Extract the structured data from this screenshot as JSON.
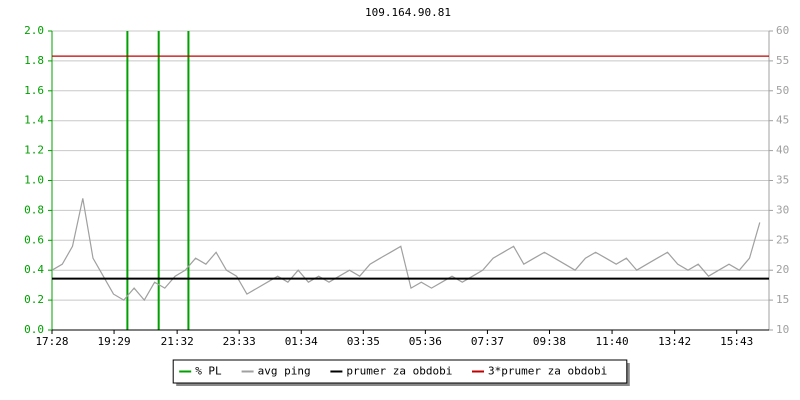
{
  "chart_data": {
    "type": "line",
    "title": "109.164.90.81",
    "xlim": [
      "17:28",
      "16:46"
    ],
    "xticks": [
      "17:28",
      "19:29",
      "21:32",
      "23:33",
      "01:34",
      "03:35",
      "05:36",
      "07:37",
      "09:38",
      "11:40",
      "13:42",
      "15:43"
    ],
    "ylim": [
      0,
      2
    ],
    "yticks": [
      {
        "value": 0,
        "label": "0.0"
      },
      0.2,
      0.4,
      0.6,
      0.8,
      {
        "value": 1,
        "label": "1.0"
      },
      1.2,
      1.4,
      1.6,
      1.8,
      {
        "value": 2,
        "label": "2.0"
      }
    ],
    "y2lim": [
      10,
      60
    ],
    "y2ticks": [
      10,
      15,
      20,
      25,
      30,
      35,
      40,
      45,
      50,
      55,
      60
    ],
    "grid": true,
    "legend": "bottom",
    "series": [
      {
        "name": "% PL",
        "color": "#00a000",
        "mark": "bar",
        "x": [
          "19:55",
          "20:56",
          "21:54"
        ],
        "values": [
          2,
          2,
          2
        ]
      },
      {
        "name": "avg ping",
        "color": "#a0a0a0",
        "mark": "line",
        "axis": "y2",
        "x": [
          "17:28",
          "17:48",
          "18:08",
          "18:28",
          "18:48",
          "19:08",
          "19:28",
          "19:48",
          "20:08",
          "20:28",
          "20:48",
          "21:08",
          "21:28",
          "21:48",
          "22:08",
          "22:28",
          "22:48",
          "23:08",
          "23:28",
          "23:48",
          "00:08",
          "00:28",
          "00:48",
          "01:08",
          "01:28",
          "01:48",
          "02:08",
          "02:28",
          "02:48",
          "03:08",
          "03:28",
          "03:48",
          "04:08",
          "04:28",
          "04:48",
          "05:08",
          "05:28",
          "05:48",
          "06:08",
          "06:28",
          "06:48",
          "07:08",
          "07:28",
          "07:48",
          "08:08",
          "08:28",
          "08:48",
          "09:08",
          "09:28",
          "09:48",
          "10:08",
          "10:28",
          "10:48",
          "11:08",
          "11:28",
          "11:48",
          "12:08",
          "12:28",
          "12:48",
          "13:08",
          "13:28",
          "13:48",
          "14:08",
          "14:28",
          "14:48",
          "15:08",
          "15:28",
          "15:48",
          "16:08",
          "16:28"
        ],
        "values": [
          20,
          21,
          24,
          32,
          22,
          19,
          16,
          15,
          17,
          15,
          18,
          17,
          19,
          20,
          22,
          21,
          23,
          20,
          19,
          16,
          17,
          18,
          19,
          18,
          20,
          18,
          19,
          18,
          19,
          20,
          19,
          21,
          22,
          23,
          24,
          17,
          18,
          17,
          18,
          19,
          18,
          19,
          20,
          22,
          23,
          24,
          21,
          22,
          23,
          22,
          21,
          20,
          22,
          23,
          22,
          21,
          22,
          20,
          21,
          22,
          23,
          21,
          20,
          21,
          19,
          20,
          21,
          20,
          22,
          28
        ]
      },
      {
        "name": "prumer za obdobi",
        "color": "#000000",
        "mark": "hline",
        "axis": "y2",
        "values": [
          18.6
        ]
      },
      {
        "name": "3*prumer za obdobi",
        "color": "#c00000",
        "mark": "hline",
        "axis": "y2",
        "values": [
          55.8
        ]
      }
    ]
  }
}
